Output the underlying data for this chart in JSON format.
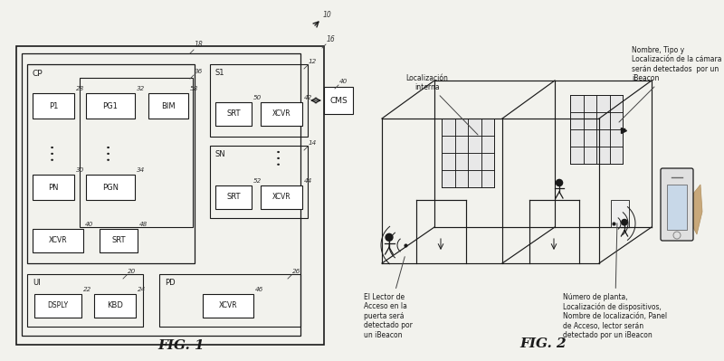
{
  "bg_color": "#f2f2ed",
  "line_color": "#1a1a1a",
  "box_fill": "#ffffff",
  "text_color": "#1a1a1a",
  "fig_title_1": "FIG. 1",
  "fig_title_2": "FIG. 2",
  "fig2_annotations": {
    "localizacion_interna": "Localización\ninterna",
    "nombre_tipo": "Nombre, Tipo y\nLocalización de la cámara\nserán detectados  por un\niBeacon",
    "lector_acceso": "El Lector de\nAcceso en la\npuerta será\ndetectado por\nun iBeacon",
    "numero_planta": "Número de planta,\nLocalización de dispositivos,\nNombre de localización, Panel\nde Acceso, lector serán\ndetectado por un iBeacon"
  }
}
